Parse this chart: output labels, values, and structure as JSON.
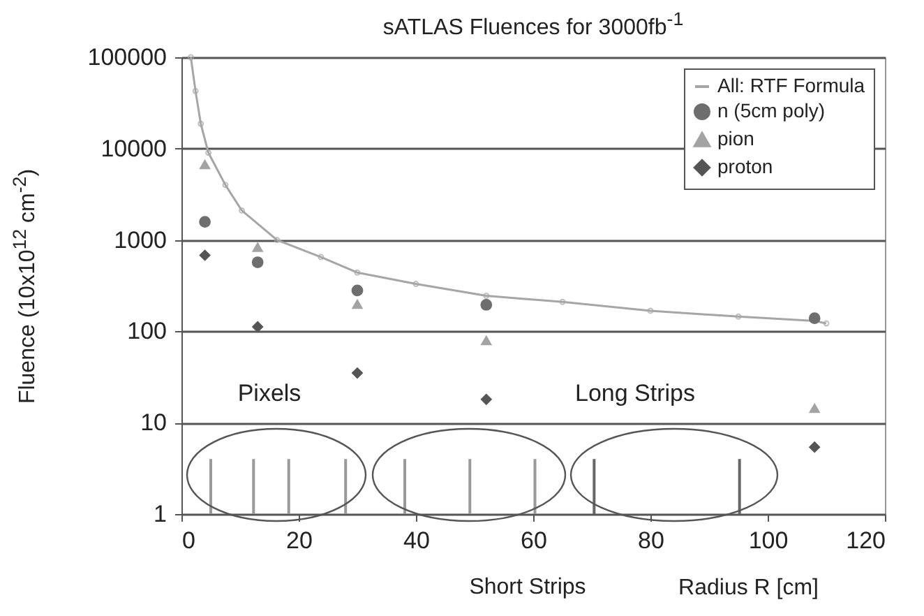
{
  "chart_data": {
    "type": "scatter",
    "title": "sATLAS Fluences for 3000fb$^{-1}$",
    "xlabel": "Radius R [cm]",
    "ylabel": "Fluence (10x10$^{12}$ cm$^{-2}$)",
    "log": "y",
    "grid": "y",
    "legend": "top right",
    "xlim": [
      0,
      120
    ],
    "xticks": [
      0,
      20,
      40,
      60,
      80,
      100,
      120
    ],
    "ylim": [
      1,
      100000
    ],
    "yticks": [
      1,
      10,
      100,
      1000,
      10000,
      100000
    ],
    "annotations": [
      "Pixels",
      "Long Strips",
      "Short Strips"
    ],
    "series": [
      {
        "name": "All: RTF Formula",
        "type": "line",
        "marker": "circle",
        "color": "#a6a6a6",
        "x": [
          1.6,
          2.4,
          3.3,
          4.6,
          7.5,
          10.3,
          16.3,
          23.8,
          30,
          40,
          52,
          65,
          80,
          95,
          108,
          110
        ],
        "values": [
          100000,
          42700,
          18700,
          9000,
          4000,
          2100,
          1000,
          650,
          440,
          330,
          245,
          210,
          168,
          145,
          130,
          122
        ]
      },
      {
        "name": "n (5cm poly)",
        "marker": "circle",
        "color": "#6e6e6e",
        "x": [
          4,
          13,
          30,
          52,
          108
        ],
        "values": [
          1580,
          570,
          280,
          195,
          139
        ]
      },
      {
        "name": "pion",
        "marker": "triangle",
        "color": "#a3a3a3",
        "x": [
          4,
          13,
          30,
          52,
          108
        ],
        "values": [
          6770,
          840,
          200,
          80,
          14.5
        ]
      },
      {
        "name": "proton",
        "marker": "diamond",
        "color": "#555555",
        "x": [
          4,
          13,
          30,
          52,
          108
        ],
        "values": [
          680,
          112,
          35,
          18,
          5.4
        ]
      },
      {
        "type": "bar",
        "colors": [
          "#999999",
          "#999999",
          "#999999",
          "#999999",
          "#999999",
          "#999999",
          "#999999",
          "#666666",
          "#666666"
        ],
        "x": [
          5,
          12.3,
          18.3,
          28,
          38.1,
          49.2,
          60.3,
          70.4,
          95.2
        ],
        "values": [
          4,
          4,
          4,
          4,
          4,
          4,
          4,
          4,
          4
        ]
      }
    ]
  }
}
